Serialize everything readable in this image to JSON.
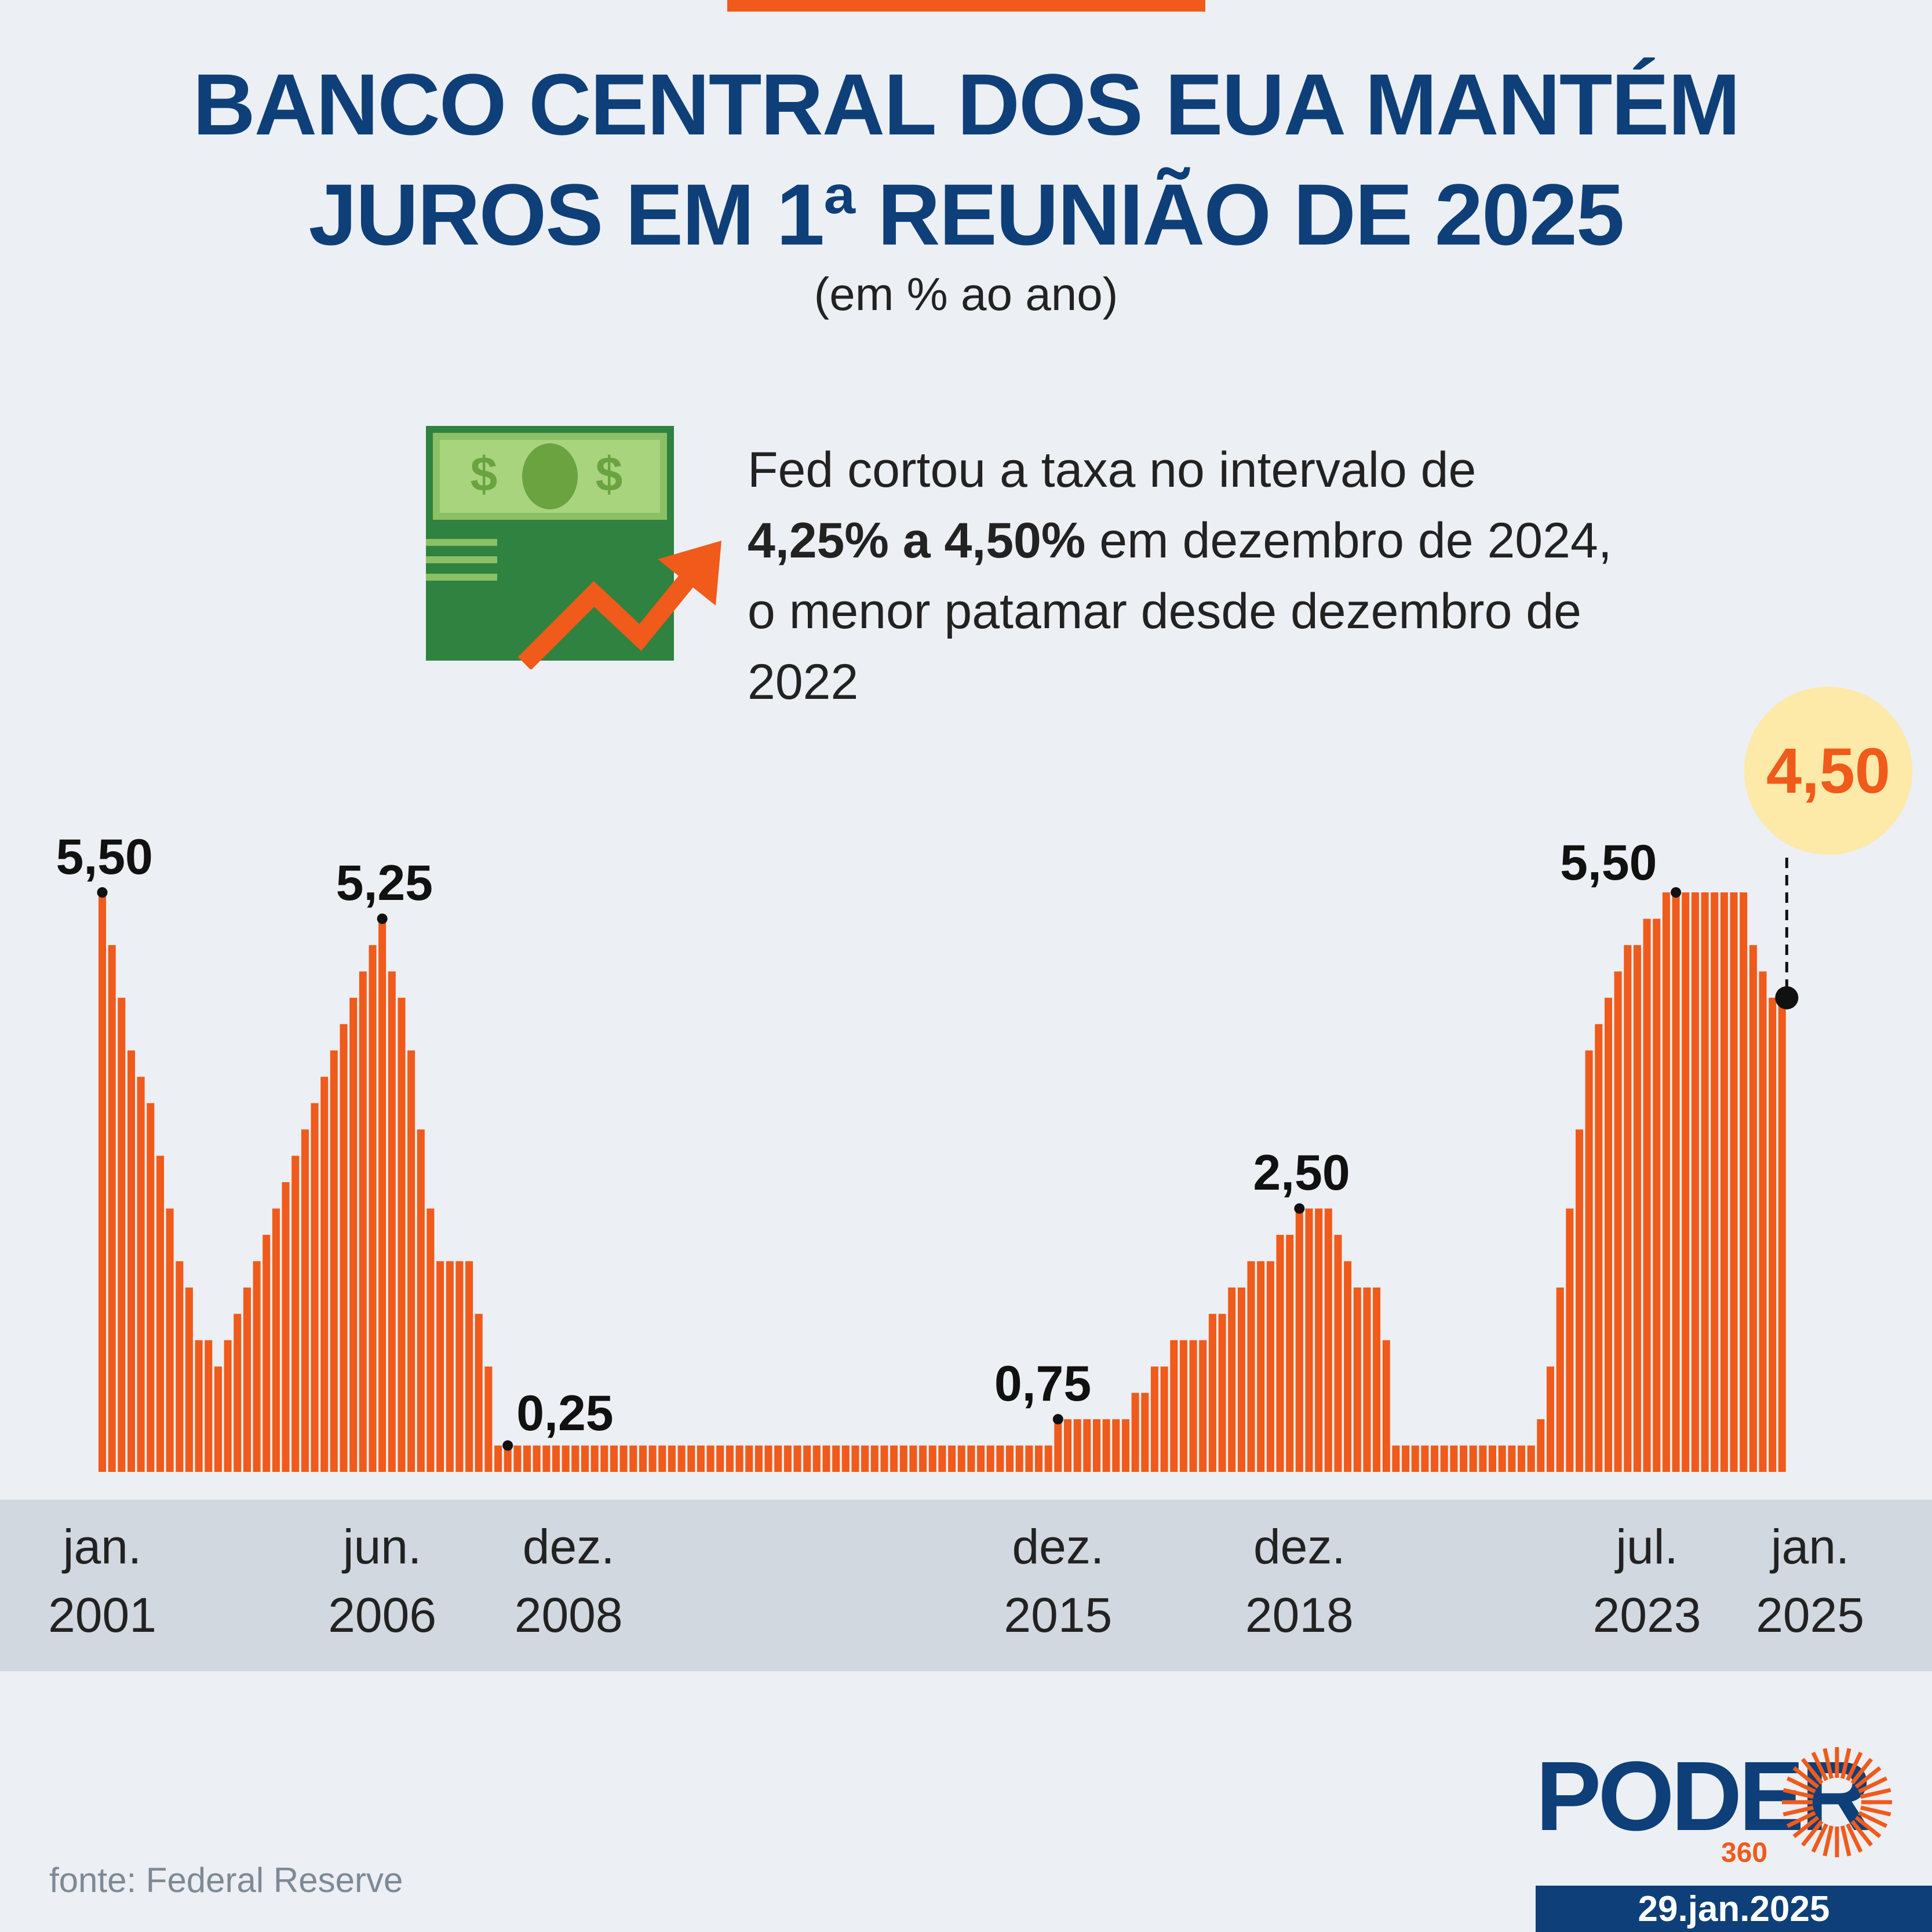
{
  "header": {
    "title_line1": "BANCO CENTRAL DOS EUA MANTÉM",
    "title_line2": "JUROS EM 1ª REUNIÃO DE 2025",
    "subtitle": "(em % ao ano)"
  },
  "callout": {
    "text_before": "Fed cortou a taxa no intervalo de ",
    "text_bold": "4,25% a 4,50%",
    "text_after": " em dezembro de 2024, o menor patamar desde dezembro de 2022"
  },
  "highlight_value": "4,50",
  "annotations": [
    {
      "label": "5,50",
      "bar": 0
    },
    {
      "label": "5,25",
      "bar": 29
    },
    {
      "label": "0,25",
      "bar": 42
    },
    {
      "label": "0,75",
      "bar": 99
    },
    {
      "label": "2,50",
      "bar": 124
    },
    {
      "label": "5,50",
      "bar": 163
    }
  ],
  "x_labels": [
    {
      "line1": "jan.",
      "line2": "2001",
      "bar": 0
    },
    {
      "line1": "jun.",
      "line2": "2006",
      "bar": 29
    },
    {
      "line1": "dez.",
      "line2": "2008",
      "bar": 45
    },
    {
      "line1": "dez.",
      "line2": "2015",
      "bar": 99
    },
    {
      "line1": "dez.",
      "line2": "2018",
      "bar": 124
    },
    {
      "line1": "jul.",
      "line2": "2023",
      "bar": 163
    },
    {
      "line1": "jan.",
      "line2": "2025",
      "bar": 176
    }
  ],
  "source": "fonte: Federal Reserve",
  "brand": {
    "name": "PODER",
    "sub": "360"
  },
  "date": "29.jan.2025",
  "colors": {
    "bar": "#f05a1a",
    "title": "#0e3f78",
    "bubble": "#fde9a8"
  },
  "chart_data": {
    "type": "bar",
    "ylabel": "(em % ao ano)",
    "ylim": [
      0,
      6
    ],
    "first_label": "jan. 2001",
    "last_label": "jan. 2025",
    "values": [
      5.5,
      5.0,
      4.5,
      4.0,
      3.75,
      3.5,
      3.0,
      2.5,
      2.0,
      1.75,
      1.25,
      1.25,
      1.0,
      1.25,
      1.5,
      1.75,
      2.0,
      2.25,
      2.5,
      2.75,
      3.0,
      3.25,
      3.5,
      3.75,
      4.0,
      4.25,
      4.5,
      4.75,
      5.0,
      5.25,
      4.75,
      4.5,
      4.0,
      3.25,
      2.5,
      2.0,
      2.0,
      2.0,
      2.0,
      1.5,
      1.0,
      0.25,
      0.25,
      0.25,
      0.25,
      0.25,
      0.25,
      0.25,
      0.25,
      0.25,
      0.25,
      0.25,
      0.25,
      0.25,
      0.25,
      0.25,
      0.25,
      0.25,
      0.25,
      0.25,
      0.25,
      0.25,
      0.25,
      0.25,
      0.25,
      0.25,
      0.25,
      0.25,
      0.25,
      0.25,
      0.25,
      0.25,
      0.25,
      0.25,
      0.25,
      0.25,
      0.25,
      0.25,
      0.25,
      0.25,
      0.25,
      0.25,
      0.25,
      0.25,
      0.25,
      0.25,
      0.25,
      0.25,
      0.25,
      0.25,
      0.25,
      0.25,
      0.25,
      0.25,
      0.25,
      0.25,
      0.25,
      0.25,
      0.25,
      0.5,
      0.5,
      0.5,
      0.5,
      0.5,
      0.5,
      0.5,
      0.5,
      0.75,
      0.75,
      1.0,
      1.0,
      1.25,
      1.25,
      1.25,
      1.25,
      1.5,
      1.5,
      1.75,
      1.75,
      2.0,
      2.0,
      2.0,
      2.25,
      2.25,
      2.5,
      2.5,
      2.5,
      2.5,
      2.25,
      2.0,
      1.75,
      1.75,
      1.75,
      1.25,
      0.25,
      0.25,
      0.25,
      0.25,
      0.25,
      0.25,
      0.25,
      0.25,
      0.25,
      0.25,
      0.25,
      0.25,
      0.25,
      0.25,
      0.25,
      0.5,
      1.0,
      1.75,
      2.5,
      3.25,
      4.0,
      4.25,
      4.5,
      4.75,
      5.0,
      5.0,
      5.25,
      5.25,
      5.5,
      5.5,
      5.5,
      5.5,
      5.5,
      5.5,
      5.5,
      5.5,
      5.5,
      5.0,
      4.75,
      4.5,
      4.5
    ]
  }
}
